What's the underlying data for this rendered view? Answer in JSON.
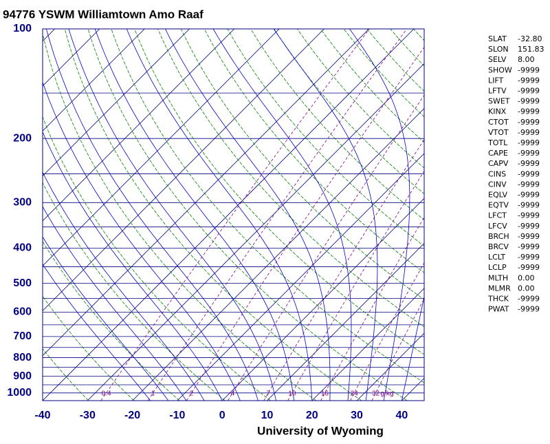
{
  "chart_data": {
    "type": "skewt",
    "title": "94776 YSWM Williamtown Amo Raaf",
    "footer": "University of Wyoming",
    "ylim": [
      100,
      1050
    ],
    "log_y": true,
    "yticks": [
      100,
      200,
      300,
      400,
      500,
      600,
      700,
      800,
      900,
      1000
    ],
    "xlim": [
      -40,
      45
    ],
    "xticks": [
      -40,
      -30,
      -20,
      -10,
      0,
      10,
      20,
      30,
      40
    ],
    "mixing_ratios": [
      0.4,
      1,
      2,
      4,
      7,
      10,
      16,
      24,
      32
    ],
    "mixing_ratio_unit": "g/kg",
    "colors": {
      "isobar": "#000080",
      "isotherm": "#000080",
      "dry_adiabat": "#008000",
      "moist_adiabat": "#0000c8",
      "mixing_ratio": "#800080",
      "axis_label": "#000080"
    }
  },
  "indices": [
    {
      "name": "SLAT",
      "value": "-32.80"
    },
    {
      "name": "SLON",
      "value": "151.83"
    },
    {
      "name": "SELV",
      "value": "8.00"
    },
    {
      "name": "SHOW",
      "value": "-9999"
    },
    {
      "name": "LIFT",
      "value": "-9999"
    },
    {
      "name": "LFTV",
      "value": "-9999"
    },
    {
      "name": "SWET",
      "value": "-9999"
    },
    {
      "name": "KINX",
      "value": "-9999"
    },
    {
      "name": "CTOT",
      "value": "-9999"
    },
    {
      "name": "VTOT",
      "value": "-9999"
    },
    {
      "name": "TOTL",
      "value": "-9999"
    },
    {
      "name": "CAPE",
      "value": "-9999"
    },
    {
      "name": "CAPV",
      "value": "-9999"
    },
    {
      "name": "CINS",
      "value": "-9999"
    },
    {
      "name": "CINV",
      "value": "-9999"
    },
    {
      "name": "EQLV",
      "value": "-9999"
    },
    {
      "name": "EQTV",
      "value": "-9999"
    },
    {
      "name": "LFCT",
      "value": "-9999"
    },
    {
      "name": "LFCV",
      "value": "-9999"
    },
    {
      "name": "BRCH",
      "value": "-9999"
    },
    {
      "name": "BRCV",
      "value": "-9999"
    },
    {
      "name": "LCLT",
      "value": "-9999"
    },
    {
      "name": "LCLP",
      "value": "-9999"
    },
    {
      "name": "MLTH",
      "value": "0.00"
    },
    {
      "name": "MLMR",
      "value": "0.00"
    },
    {
      "name": "THCK",
      "value": "-9999"
    },
    {
      "name": "PWAT",
      "value": "-9999"
    }
  ]
}
